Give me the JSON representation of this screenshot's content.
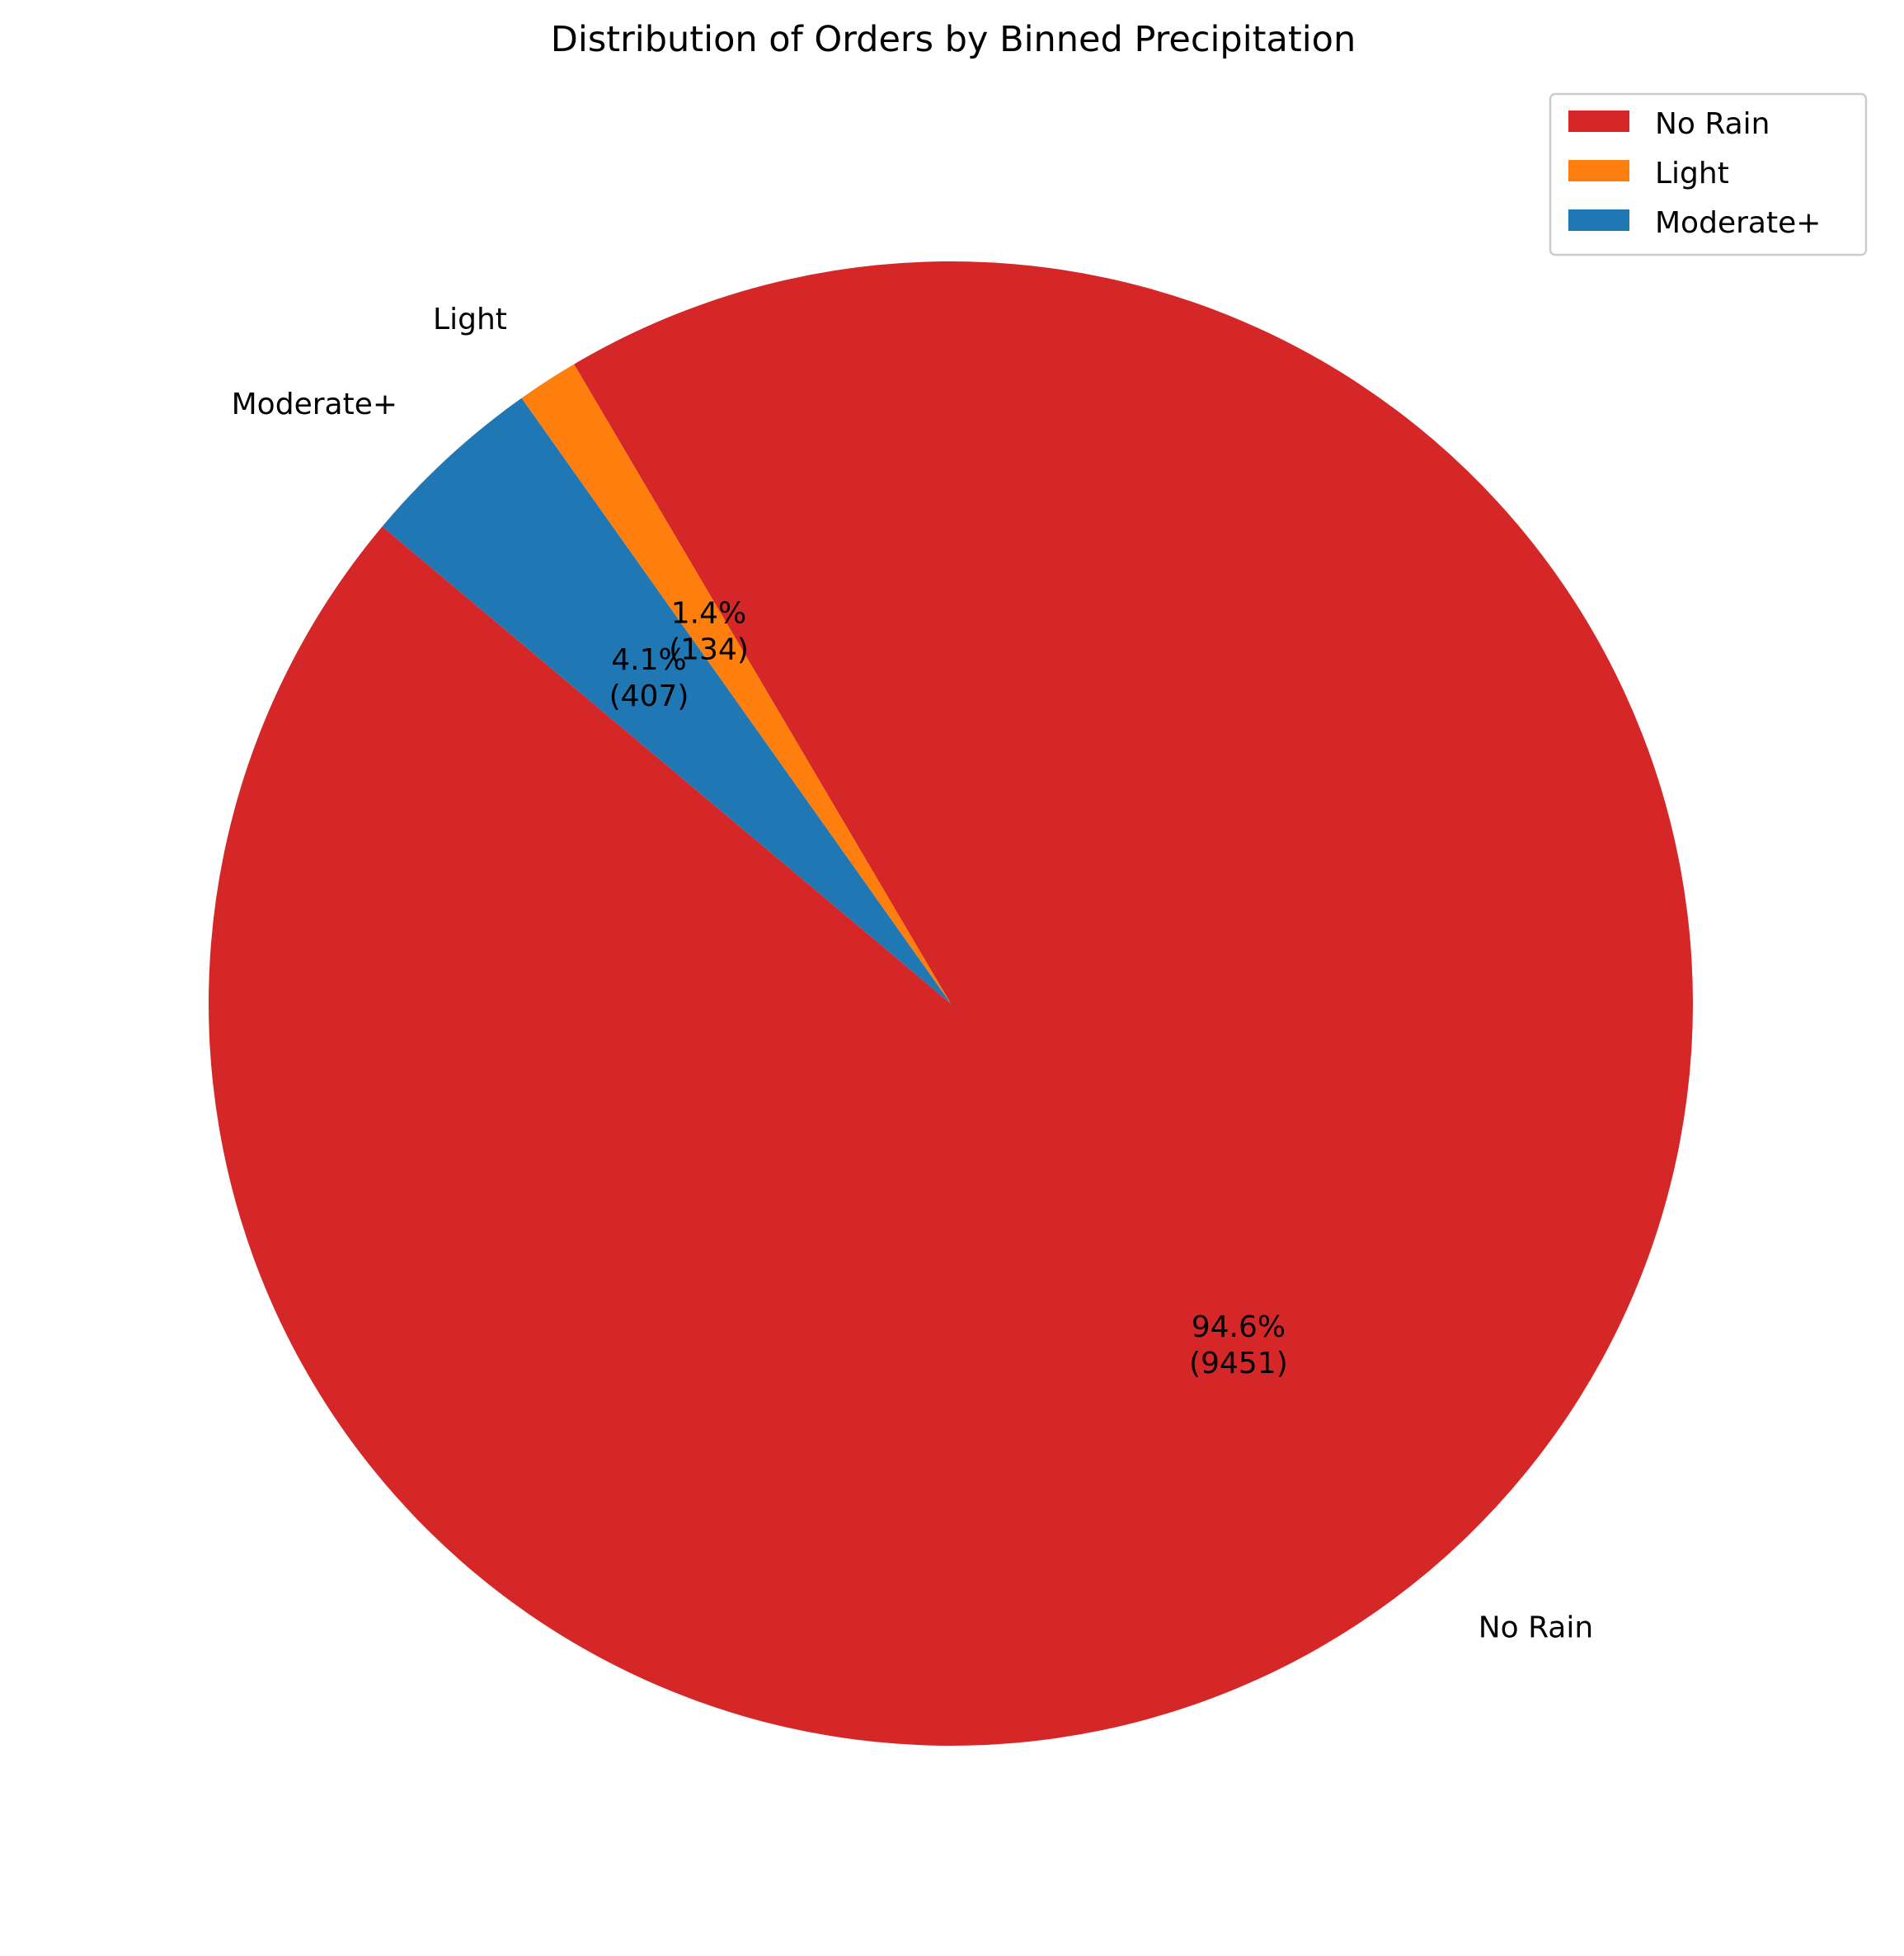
{
  "chart_data": {
    "type": "pie",
    "title": "Distribution of Orders by Binned Precipitation",
    "categories": [
      "No Rain",
      "Light",
      "Moderate+"
    ],
    "values": [
      9451,
      134,
      407
    ],
    "percent_labels": [
      "94.6%",
      "1.4%",
      "4.1%"
    ],
    "count_labels": [
      "(9451)",
      "(134)",
      "(407)"
    ],
    "colors": [
      "#d62728",
      "#ff7f0e",
      "#1f77b4"
    ],
    "start_angle_deg": 140,
    "direction": "counterclockwise",
    "legend": {
      "placement": "top-right",
      "entries": [
        "No Rain",
        "Light",
        "Moderate+"
      ]
    }
  }
}
